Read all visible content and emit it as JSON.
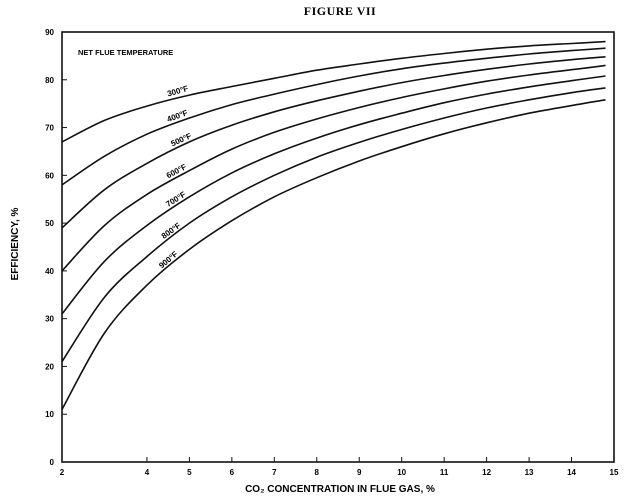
{
  "chart_data": {
    "type": "line",
    "title": "FIGURE VII",
    "xlabel": "CO₂ CONCENTRATION IN FLUE GAS, %",
    "ylabel": "EFFICIENCY, %",
    "annotation": "NET FLUE TEMPERATURE",
    "xlim": [
      2,
      15
    ],
    "ylim": [
      0,
      90
    ],
    "xticks": [
      "2",
      "4",
      "5",
      "6",
      "7",
      "8",
      "9",
      "10",
      "11",
      "12",
      "13",
      "14",
      "15"
    ],
    "xtick_values": [
      2,
      4,
      5,
      6,
      7,
      8,
      9,
      10,
      11,
      12,
      13,
      14,
      15
    ],
    "yticks": [
      "0",
      "10",
      "20",
      "30",
      "40",
      "50",
      "60",
      "70",
      "80",
      "90"
    ],
    "grid": false,
    "x": [
      2,
      3,
      4,
      5,
      6,
      7,
      8,
      9,
      10,
      11,
      12,
      13,
      14,
      14.8
    ],
    "series": [
      {
        "name": "300°F",
        "values": [
          67,
          71.5,
          74.5,
          76.8,
          78.6,
          80.3,
          82.0,
          83.3,
          84.5,
          85.5,
          86.4,
          87.1,
          87.6,
          88.0
        ]
      },
      {
        "name": "400°F",
        "values": [
          58,
          64.0,
          68.6,
          72.0,
          74.8,
          77.0,
          79.0,
          80.8,
          82.3,
          83.5,
          84.5,
          85.4,
          86.1,
          86.6
        ]
      },
      {
        "name": "500°F",
        "values": [
          49,
          57.0,
          62.5,
          67.0,
          70.5,
          73.3,
          75.6,
          77.6,
          79.4,
          80.9,
          82.2,
          83.3,
          84.2,
          84.8
        ]
      },
      {
        "name": "600°F",
        "values": [
          40,
          49.5,
          56.0,
          61.0,
          65.5,
          69.0,
          71.8,
          74.2,
          76.3,
          78.1,
          79.7,
          81.0,
          82.1,
          83.0
        ]
      },
      {
        "name": "700°F",
        "values": [
          31,
          42.0,
          49.5,
          55.5,
          60.5,
          64.5,
          67.8,
          70.6,
          73.0,
          75.2,
          77.0,
          78.5,
          79.8,
          80.8
        ]
      },
      {
        "name": "800°F",
        "values": [
          21,
          34.5,
          43.0,
          50.0,
          55.5,
          60.0,
          63.8,
          66.9,
          69.6,
          72.0,
          74.1,
          75.8,
          77.3,
          78.3
        ]
      },
      {
        "name": "900°F",
        "values": [
          11,
          27.0,
          37.0,
          44.5,
          50.5,
          55.5,
          59.5,
          63.0,
          66.0,
          68.7,
          71.0,
          73.0,
          74.6,
          75.8
        ]
      }
    ]
  }
}
